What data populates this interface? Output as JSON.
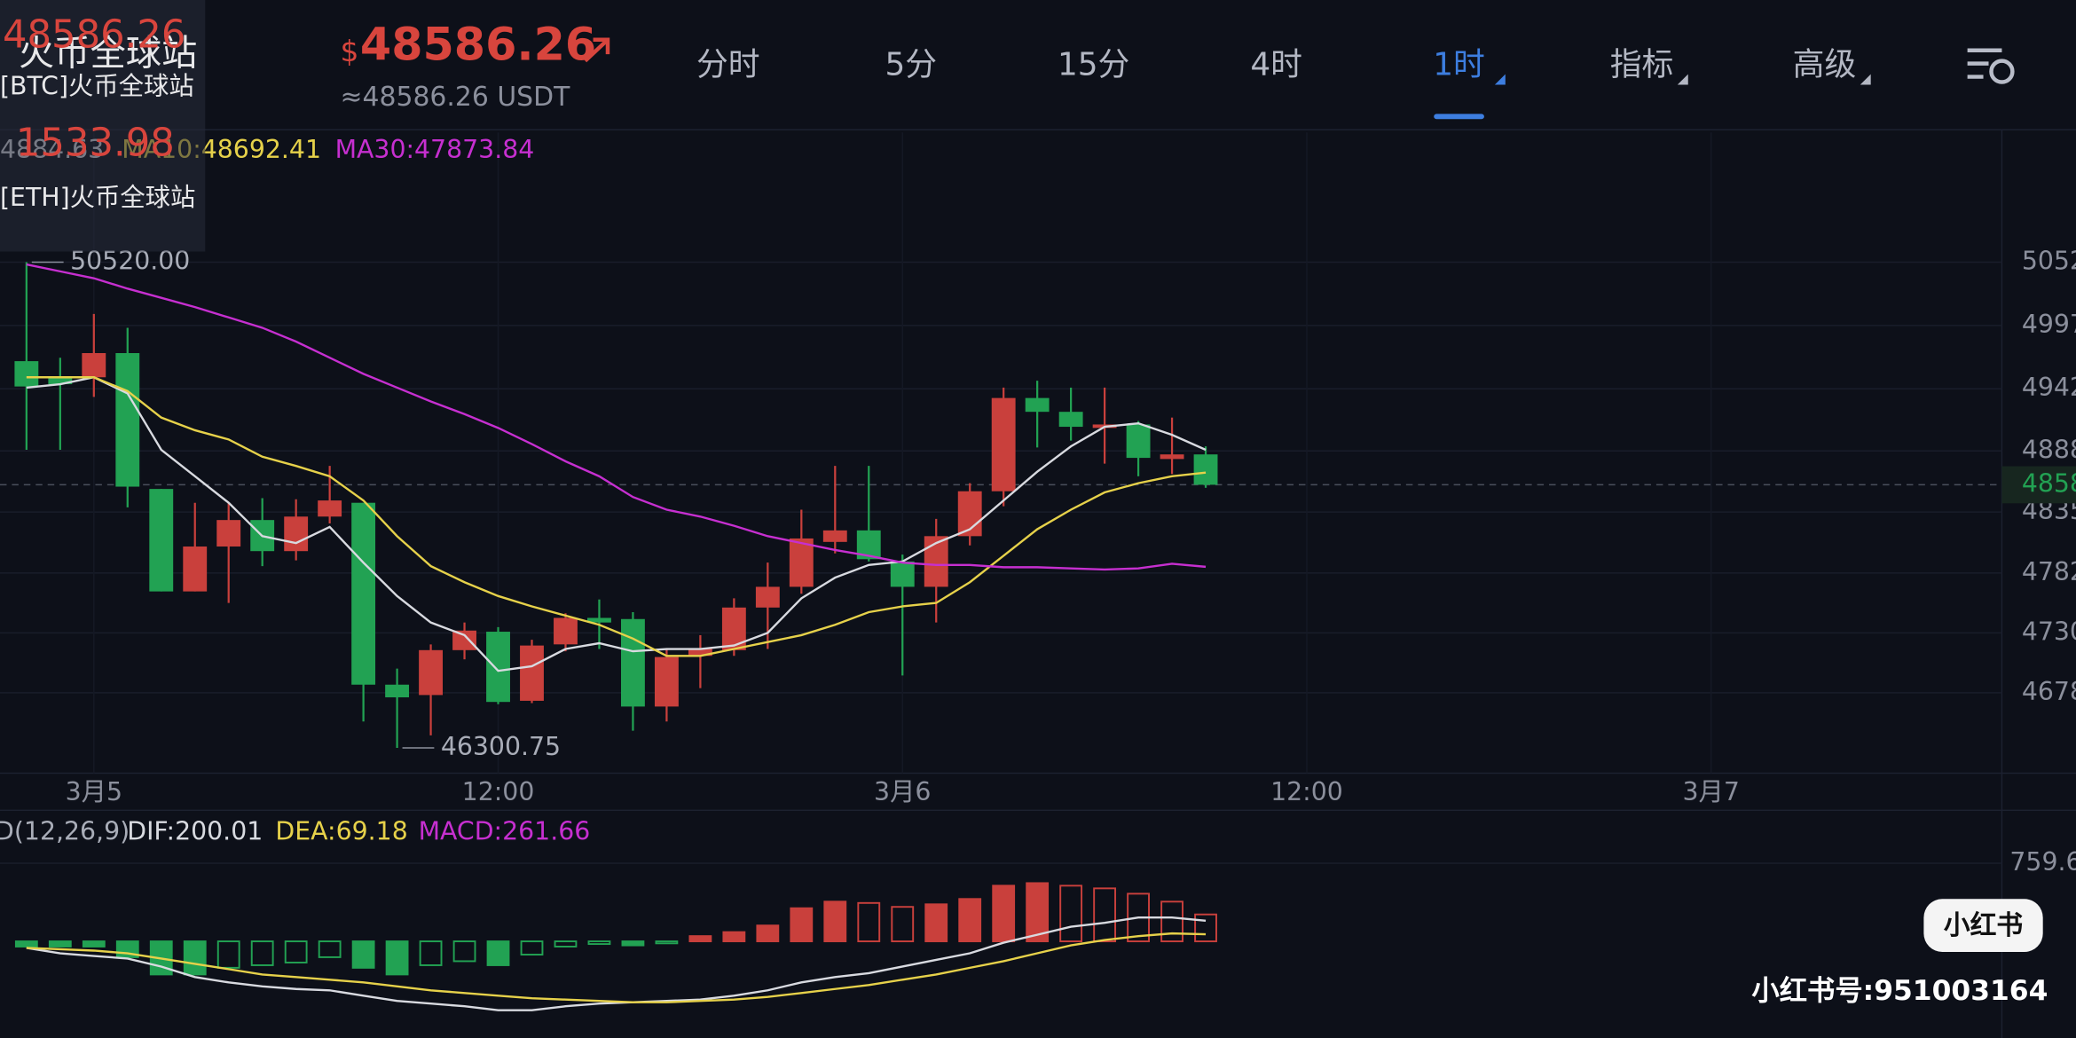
{
  "header": {
    "overlay": {
      "btc_price": "48586.26",
      "exchange": "火币全球站",
      "btc_label": "[BTC]火币全球站",
      "eth_price": "1533.98",
      "eth_label": "[ETH]火币全球站"
    },
    "currency": "$",
    "price": "48586.26",
    "usdt": "≈48586.26 USDT",
    "tabs": [
      "分时",
      "5分",
      "15分",
      "4时",
      "1时",
      "指标",
      "高级"
    ],
    "active_tab": 4,
    "dropdown_tabs": [
      4,
      5,
      6
    ]
  },
  "chart_data": [
    {
      "type": "candlestick",
      "up_color": "#c9403c",
      "down_color": "#22a253",
      "xlim": [
        -0.786,
        58.63
      ],
      "xticks": [
        {
          "value": 2,
          "label": "3月5"
        },
        {
          "value": 14,
          "label": "12:00"
        },
        {
          "value": 26,
          "label": "3月6"
        },
        {
          "value": 38,
          "label": "12:00"
        },
        {
          "value": 50,
          "label": "3月7"
        }
      ],
      "ylim": [
        46081,
        51647
      ],
      "yticks": [
        {
          "value": 50520,
          "label": "5052"
        },
        {
          "value": 49970,
          "label": "4997"
        },
        {
          "value": 49420,
          "label": "4942"
        },
        {
          "value": 48880,
          "label": "4888"
        },
        {
          "value": 48350,
          "label": "4835"
        },
        {
          "value": 47820,
          "label": "4782"
        },
        {
          "value": 47300,
          "label": "4730"
        },
        {
          "value": 46780,
          "label": "4678"
        }
      ],
      "grid": true,
      "last_price": {
        "value": 48586.26,
        "label": "4858"
      },
      "annotations": [
        {
          "text": "50520.00",
          "value": 50520,
          "kind": "high"
        },
        {
          "text": "46300.75",
          "value": 46300.75,
          "kind": "low"
        }
      ],
      "candles": [
        [
          49660,
          50520,
          48890,
          49440
        ],
        [
          49520,
          49690,
          48890,
          49460
        ],
        [
          49520,
          50070,
          49350,
          49730
        ],
        [
          49730,
          49950,
          48390,
          48570
        ],
        [
          48550,
          48550,
          47660,
          47660
        ],
        [
          47660,
          48430,
          47660,
          48050
        ],
        [
          48050,
          48430,
          47560,
          48280
        ],
        [
          48280,
          48470,
          47880,
          48010
        ],
        [
          48010,
          48460,
          47930,
          48310
        ],
        [
          48310,
          48750,
          48250,
          48450
        ],
        [
          48430,
          48430,
          46530,
          46850
        ],
        [
          46850,
          46990,
          46300.75,
          46740
        ],
        [
          46760,
          47200,
          46410,
          47150
        ],
        [
          47150,
          47390,
          47070,
          47320
        ],
        [
          47310,
          47350,
          46680,
          46700
        ],
        [
          46710,
          47240,
          46690,
          47190
        ],
        [
          47200,
          47470,
          47140,
          47430
        ],
        [
          47430,
          47590,
          47160,
          47390
        ],
        [
          47420,
          47480,
          46450,
          46660
        ],
        [
          46660,
          47160,
          46530,
          47090
        ],
        [
          47100,
          47280,
          46820,
          47160
        ],
        [
          47150,
          47600,
          47100,
          47520
        ],
        [
          47520,
          47910,
          47160,
          47700
        ],
        [
          47700,
          48370,
          47640,
          48120
        ],
        [
          48090,
          48750,
          47990,
          48190
        ],
        [
          48190,
          48750,
          47920,
          47940
        ],
        [
          47920,
          47980,
          46930,
          47700
        ],
        [
          47700,
          48290,
          47390,
          48140
        ],
        [
          48140,
          48600,
          48060,
          48530
        ],
        [
          48530,
          49430,
          48400,
          49340
        ],
        [
          49340,
          49490,
          48910,
          49220
        ],
        [
          49220,
          49430,
          48970,
          49090
        ],
        [
          49080,
          49430,
          48770,
          49110
        ],
        [
          49110,
          49140,
          48660,
          48820
        ],
        [
          48810,
          49170,
          48680,
          48850
        ],
        [
          48850,
          48920,
          48560,
          48586.26
        ]
      ],
      "series": [
        {
          "name": "4884.63",
          "color": "#d8dae0",
          "values": [
            49430,
            49460,
            49520,
            49380,
            48890,
            48660,
            48430,
            48140,
            48080,
            48220,
            47910,
            47620,
            47390,
            47280,
            46970,
            47010,
            47160,
            47210,
            47140,
            47160,
            47160,
            47190,
            47300,
            47600,
            47780,
            47890,
            47920,
            48080,
            48200,
            48450,
            48700,
            48920,
            49090,
            49120,
            49020,
            48890
          ]
        },
        {
          "name": "MA10:48692.41",
          "color": "#e6d14a",
          "values": [
            49520,
            49520,
            49520,
            49400,
            49170,
            49060,
            48980,
            48830,
            48750,
            48660,
            48450,
            48140,
            47880,
            47740,
            47620,
            47530,
            47450,
            47370,
            47250,
            47100,
            47100,
            47160,
            47220,
            47280,
            47370,
            47480,
            47530,
            47560,
            47740,
            47970,
            48200,
            48370,
            48520,
            48600,
            48660,
            48692.41
          ]
        },
        {
          "name": "MA30:47873.84",
          "color": "#c62fd0",
          "values": [
            50500,
            50440,
            50380,
            50290,
            50210,
            50130,
            50040,
            49950,
            49830,
            49690,
            49550,
            49430,
            49310,
            49200,
            49080,
            48940,
            48790,
            48660,
            48480,
            48370,
            48310,
            48230,
            48140,
            48080,
            48020,
            47970,
            47910,
            47890,
            47890,
            47870,
            47870,
            47860,
            47850,
            47860,
            47900,
            47873.84
          ]
        }
      ]
    },
    {
      "type": "macd",
      "up_color": "#c9403c",
      "down_color": "#22a253",
      "xlim": [
        -0.786,
        58.63
      ],
      "ylim": [
        -759.3,
        849.4
      ],
      "yticks": [
        759.6
      ],
      "title": "D(12,26,9)",
      "histogram": {
        "name": "MACD:261.66",
        "color": "#c62fd0",
        "values": [
          -51,
          -51,
          -51,
          -154,
          -322,
          -322,
          -257,
          -232,
          -206,
          -154,
          -257,
          -322,
          -232,
          -193,
          -232,
          -129,
          -51,
          -26,
          -39,
          -13,
          51,
          90,
          154,
          322,
          386,
          373,
          335,
          360,
          412,
          541,
          566,
          541,
          515,
          463,
          386,
          261.66
        ]
      },
      "series": [
        {
          "name": "DIF:200.01",
          "color": "#d8dae0",
          "values": [
            -64,
            -116,
            -142,
            -167,
            -245,
            -347,
            -399,
            -438,
            -463,
            -476,
            -528,
            -579,
            -605,
            -631,
            -669,
            -669,
            -631,
            -605,
            -592,
            -579,
            -566,
            -528,
            -476,
            -399,
            -347,
            -309,
            -245,
            -180,
            -116,
            -13,
            64,
            142,
            180,
            232,
            232,
            200.01
          ]
        },
        {
          "name": "DEA:69.18",
          "color": "#e6d14a",
          "values": [
            -64,
            -77,
            -90,
            -116,
            -167,
            -219,
            -270,
            -322,
            -347,
            -373,
            -399,
            -438,
            -476,
            -502,
            -528,
            -553,
            -566,
            -579,
            -592,
            -592,
            -579,
            -566,
            -540,
            -502,
            -463,
            -425,
            -373,
            -322,
            -257,
            -193,
            -116,
            -39,
            13,
            51,
            77,
            69.18
          ]
        }
      ]
    }
  ],
  "watermark": {
    "badge": "小红书",
    "id": "小红书号:951003164"
  }
}
